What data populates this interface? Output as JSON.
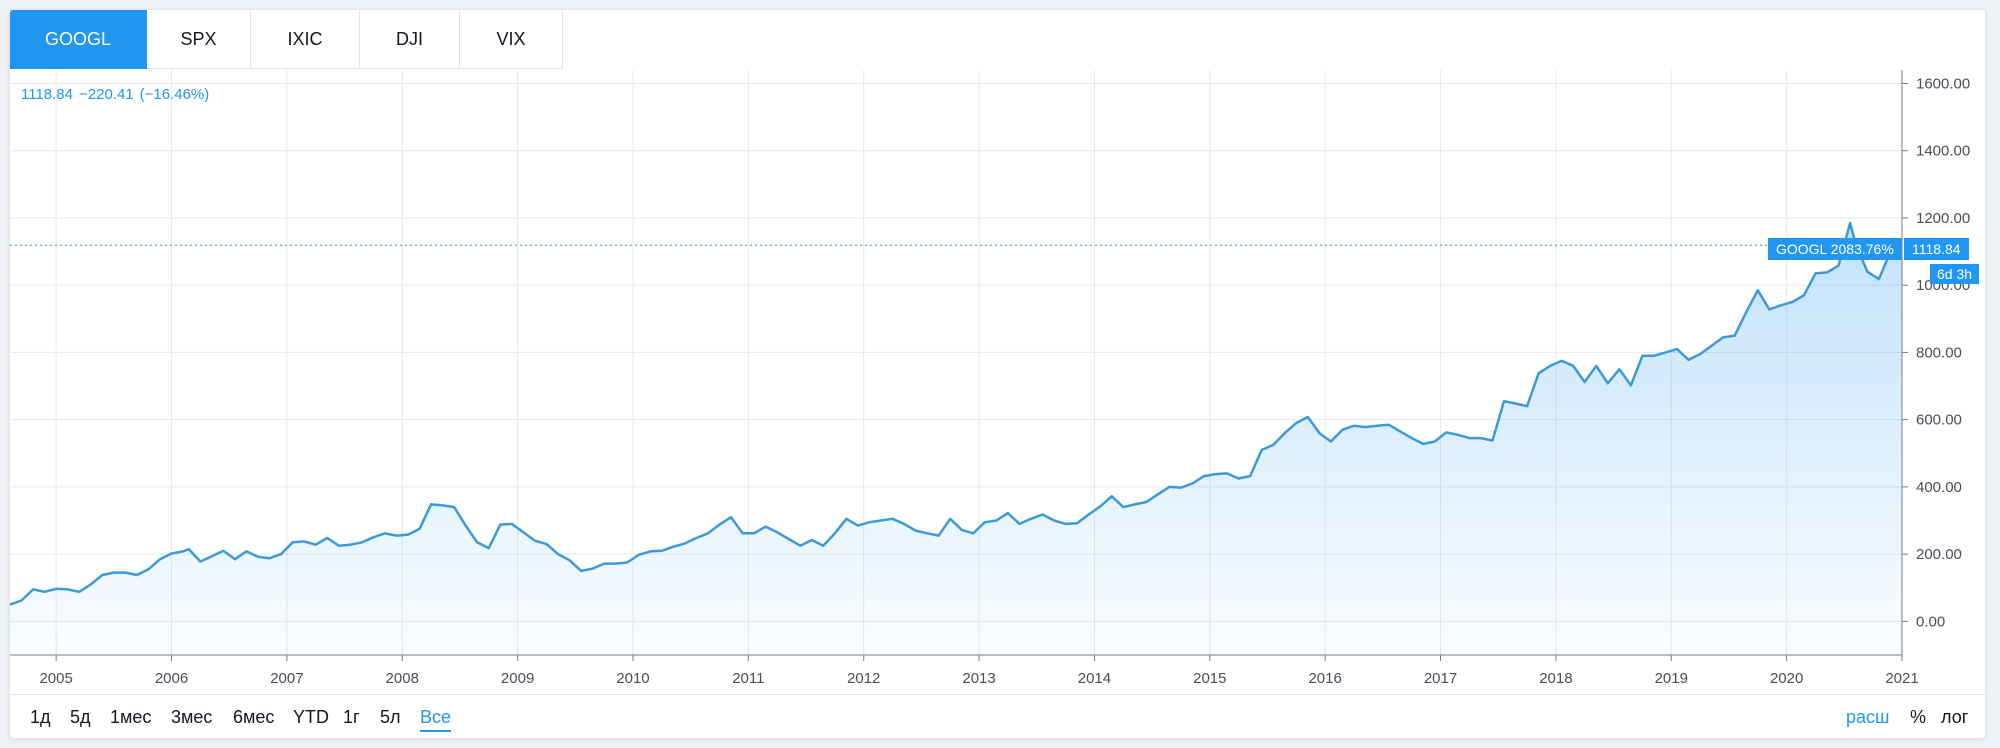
{
  "tabs": [
    {
      "label": "GOOGL",
      "active": true
    },
    {
      "label": "SPX",
      "active": false
    },
    {
      "label": "IXIC",
      "active": false
    },
    {
      "label": "DJI",
      "active": false
    },
    {
      "label": "VIX",
      "active": false
    }
  ],
  "quote": {
    "price": "1118.84",
    "change": "−220.41",
    "change_pct": "(−16.46%)"
  },
  "series_label": "GOOGL",
  "series_change_label": "2083.76%",
  "price_tag": "1118.84",
  "time_tag": "6d 3h",
  "ranges": [
    {
      "label": "1д",
      "active": false
    },
    {
      "label": "5д",
      "active": false
    },
    {
      "label": "1мес",
      "active": false
    },
    {
      "label": "3мес",
      "active": false
    },
    {
      "label": "6мес",
      "active": false
    },
    {
      "label": "YTD",
      "active": false
    },
    {
      "label": "1г",
      "active": false
    },
    {
      "label": "5л",
      "active": false
    },
    {
      "label": "Все",
      "active": true
    }
  ],
  "scale_options": [
    {
      "label": "расш",
      "active": true
    },
    {
      "label": "%",
      "active": false
    },
    {
      "label": "лог",
      "active": false
    }
  ],
  "colors": {
    "accent": "#2196f3",
    "line": "#3d9ad8",
    "grid": "#e6e9ee",
    "text": "#131722"
  },
  "chart_data": {
    "type": "area",
    "series": [
      {
        "name": "GOOGL"
      }
    ],
    "x_ticks": [
      "2005",
      "2006",
      "2007",
      "2008",
      "2009",
      "2010",
      "2011",
      "2012",
      "2013",
      "2014",
      "2015",
      "2016",
      "2017",
      "2018",
      "2019",
      "2020",
      "2021"
    ],
    "y_ticks": [
      "1600.00",
      "1400.00",
      "1200.00",
      "1000.00",
      "800.00",
      "600.00",
      "400.00",
      "200.00",
      "0.00"
    ],
    "ylim": [
      -100,
      1640
    ],
    "xlim": [
      2004.6,
      2021.0
    ],
    "last_value": 1118.84,
    "grid": true,
    "points": [
      [
        2004.6,
        50
      ],
      [
        2004.7,
        62
      ],
      [
        2004.8,
        95
      ],
      [
        2004.9,
        88
      ],
      [
        2005.0,
        97
      ],
      [
        2005.1,
        95
      ],
      [
        2005.2,
        88
      ],
      [
        2005.3,
        110
      ],
      [
        2005.4,
        138
      ],
      [
        2005.5,
        145
      ],
      [
        2005.6,
        145
      ],
      [
        2005.7,
        138
      ],
      [
        2005.8,
        155
      ],
      [
        2005.9,
        185
      ],
      [
        2006.0,
        202
      ],
      [
        2006.1,
        208
      ],
      [
        2006.15,
        215
      ],
      [
        2006.25,
        178
      ],
      [
        2006.35,
        194
      ],
      [
        2006.45,
        210
      ],
      [
        2006.55,
        185
      ],
      [
        2006.65,
        208
      ],
      [
        2006.75,
        192
      ],
      [
        2006.85,
        188
      ],
      [
        2006.95,
        200
      ],
      [
        2007.05,
        235
      ],
      [
        2007.15,
        238
      ],
      [
        2007.25,
        228
      ],
      [
        2007.35,
        248
      ],
      [
        2007.45,
        225
      ],
      [
        2007.55,
        228
      ],
      [
        2007.65,
        235
      ],
      [
        2007.75,
        250
      ],
      [
        2007.85,
        262
      ],
      [
        2007.95,
        255
      ],
      [
        2008.05,
        258
      ],
      [
        2008.15,
        275
      ],
      [
        2008.25,
        348
      ],
      [
        2008.35,
        345
      ],
      [
        2008.45,
        340
      ],
      [
        2008.55,
        285
      ],
      [
        2008.65,
        235
      ],
      [
        2008.75,
        218
      ],
      [
        2008.85,
        288
      ],
      [
        2008.95,
        290
      ],
      [
        2009.05,
        265
      ],
      [
        2009.15,
        240
      ],
      [
        2009.25,
        230
      ],
      [
        2009.35,
        200
      ],
      [
        2009.45,
        182
      ],
      [
        2009.55,
        150
      ],
      [
        2009.65,
        157
      ],
      [
        2009.75,
        172
      ],
      [
        2009.85,
        172
      ],
      [
        2009.95,
        175
      ],
      [
        2010.05,
        198
      ],
      [
        2010.15,
        208
      ],
      [
        2010.25,
        210
      ],
      [
        2010.35,
        222
      ],
      [
        2010.45,
        232
      ],
      [
        2010.55,
        248
      ],
      [
        2010.65,
        262
      ],
      [
        2010.75,
        288
      ],
      [
        2010.85,
        310
      ],
      [
        2010.95,
        262
      ],
      [
        2011.05,
        262
      ],
      [
        2011.15,
        282
      ],
      [
        2011.25,
        265
      ],
      [
        2011.35,
        245
      ],
      [
        2011.45,
        225
      ],
      [
        2011.55,
        242
      ],
      [
        2011.65,
        225
      ],
      [
        2011.75,
        262
      ],
      [
        2011.85,
        305
      ],
      [
        2011.95,
        285
      ],
      [
        2012.05,
        295
      ],
      [
        2012.15,
        300
      ],
      [
        2012.25,
        305
      ],
      [
        2012.35,
        290
      ],
      [
        2012.45,
        270
      ],
      [
        2012.55,
        262
      ],
      [
        2012.65,
        255
      ],
      [
        2012.75,
        305
      ],
      [
        2012.85,
        272
      ],
      [
        2012.95,
        262
      ],
      [
        2013.05,
        295
      ],
      [
        2013.15,
        300
      ],
      [
        2013.25,
        322
      ],
      [
        2013.35,
        290
      ],
      [
        2013.45,
        305
      ],
      [
        2013.55,
        318
      ],
      [
        2013.65,
        300
      ],
      [
        2013.75,
        290
      ],
      [
        2013.85,
        292
      ],
      [
        2013.95,
        318
      ],
      [
        2014.05,
        342
      ],
      [
        2014.15,
        372
      ],
      [
        2014.25,
        340
      ],
      [
        2014.35,
        348
      ],
      [
        2014.45,
        355
      ],
      [
        2014.55,
        378
      ],
      [
        2014.65,
        400
      ],
      [
        2014.75,
        398
      ],
      [
        2014.85,
        410
      ],
      [
        2014.95,
        432
      ],
      [
        2015.05,
        438
      ],
      [
        2015.15,
        440
      ],
      [
        2015.25,
        425
      ],
      [
        2015.35,
        432
      ],
      [
        2015.45,
        510
      ],
      [
        2015.55,
        525
      ],
      [
        2015.65,
        560
      ],
      [
        2015.75,
        590
      ],
      [
        2015.85,
        608
      ],
      [
        2015.95,
        560
      ],
      [
        2016.05,
        535
      ],
      [
        2016.15,
        570
      ],
      [
        2016.25,
        582
      ],
      [
        2016.35,
        578
      ],
      [
        2016.45,
        582
      ],
      [
        2016.55,
        585
      ],
      [
        2016.65,
        565
      ],
      [
        2016.75,
        545
      ],
      [
        2016.85,
        528
      ],
      [
        2016.95,
        535
      ],
      [
        2017.05,
        562
      ],
      [
        2017.15,
        555
      ],
      [
        2017.25,
        545
      ],
      [
        2017.35,
        545
      ],
      [
        2017.45,
        538
      ],
      [
        2017.55,
        655
      ],
      [
        2017.65,
        648
      ],
      [
        2017.75,
        640
      ],
      [
        2017.85,
        738
      ],
      [
        2017.95,
        760
      ],
      [
        2018.05,
        775
      ],
      [
        2018.15,
        760
      ],
      [
        2018.25,
        712
      ],
      [
        2018.35,
        760
      ],
      [
        2018.45,
        708
      ],
      [
        2018.55,
        750
      ],
      [
        2018.65,
        702
      ],
      [
        2018.75,
        790
      ],
      [
        2018.85,
        790
      ],
      [
        2018.95,
        800
      ],
      [
        2019.05,
        810
      ],
      [
        2019.15,
        778
      ],
      [
        2019.25,
        795
      ],
      [
        2019.35,
        820
      ],
      [
        2019.45,
        845
      ],
      [
        2019.55,
        850
      ],
      [
        2019.65,
        920
      ],
      [
        2019.75,
        985
      ],
      [
        2019.85,
        928
      ],
      [
        2019.95,
        940
      ],
      [
        2020.05,
        950
      ],
      [
        2020.15,
        970
      ],
      [
        2020.25,
        1035
      ],
      [
        2020.35,
        1038
      ],
      [
        2020.45,
        1058
      ],
      [
        2020.55,
        1185
      ],
      [
        2020.6,
        1120
      ],
      [
        2020.7,
        1040
      ],
      [
        2020.8,
        1018
      ],
      [
        2020.9,
        1100
      ],
      [
        2021.0,
        1130
      ]
    ]
  }
}
